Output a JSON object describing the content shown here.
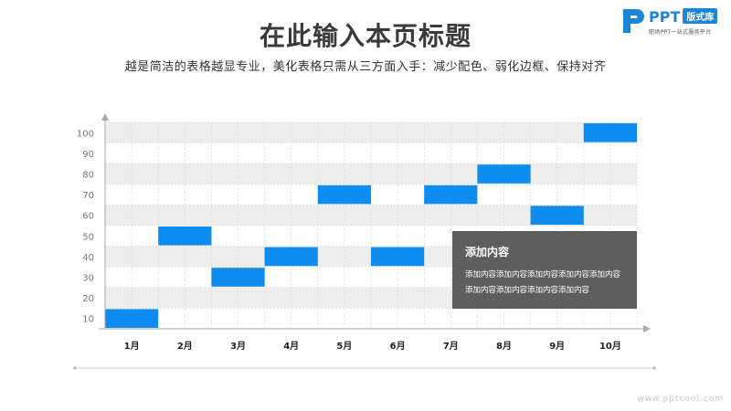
{
  "header": {
    "title": "在此输入本页标题",
    "subtitle": "越是简洁的表格越显专业，美化表格只需从三方面入手：减少配色、弱化边框、保持对齐"
  },
  "logo": {
    "icon": "p-logo-icon",
    "brand": "PPT",
    "badge": "版式库",
    "tagline": "职场PPT一站式服务平台"
  },
  "textbox": {
    "title": "添加内容",
    "body": "添加内容添加内容添加内容添加内容添加内容添加内容添加内容添加内容添加内容"
  },
  "footer": {
    "url": "www.pptcool.com"
  },
  "colors": {
    "bar": "#0f8cf0",
    "band": "#eeeeee",
    "axis": "#a8a8a8",
    "box": "#5e5e5e"
  },
  "chart_data": {
    "type": "bar",
    "categories": [
      "1月",
      "2月",
      "3月",
      "4月",
      "5月",
      "6月",
      "7月",
      "8月",
      "9月",
      "10月"
    ],
    "values": [
      10,
      50,
      30,
      40,
      70,
      40,
      70,
      80,
      60,
      100
    ],
    "yticks": [
      10,
      20,
      30,
      40,
      50,
      60,
      70,
      80,
      90,
      100
    ],
    "ylim": [
      5,
      105
    ],
    "grid": true,
    "title": "",
    "xlabel": "",
    "ylabel": ""
  }
}
